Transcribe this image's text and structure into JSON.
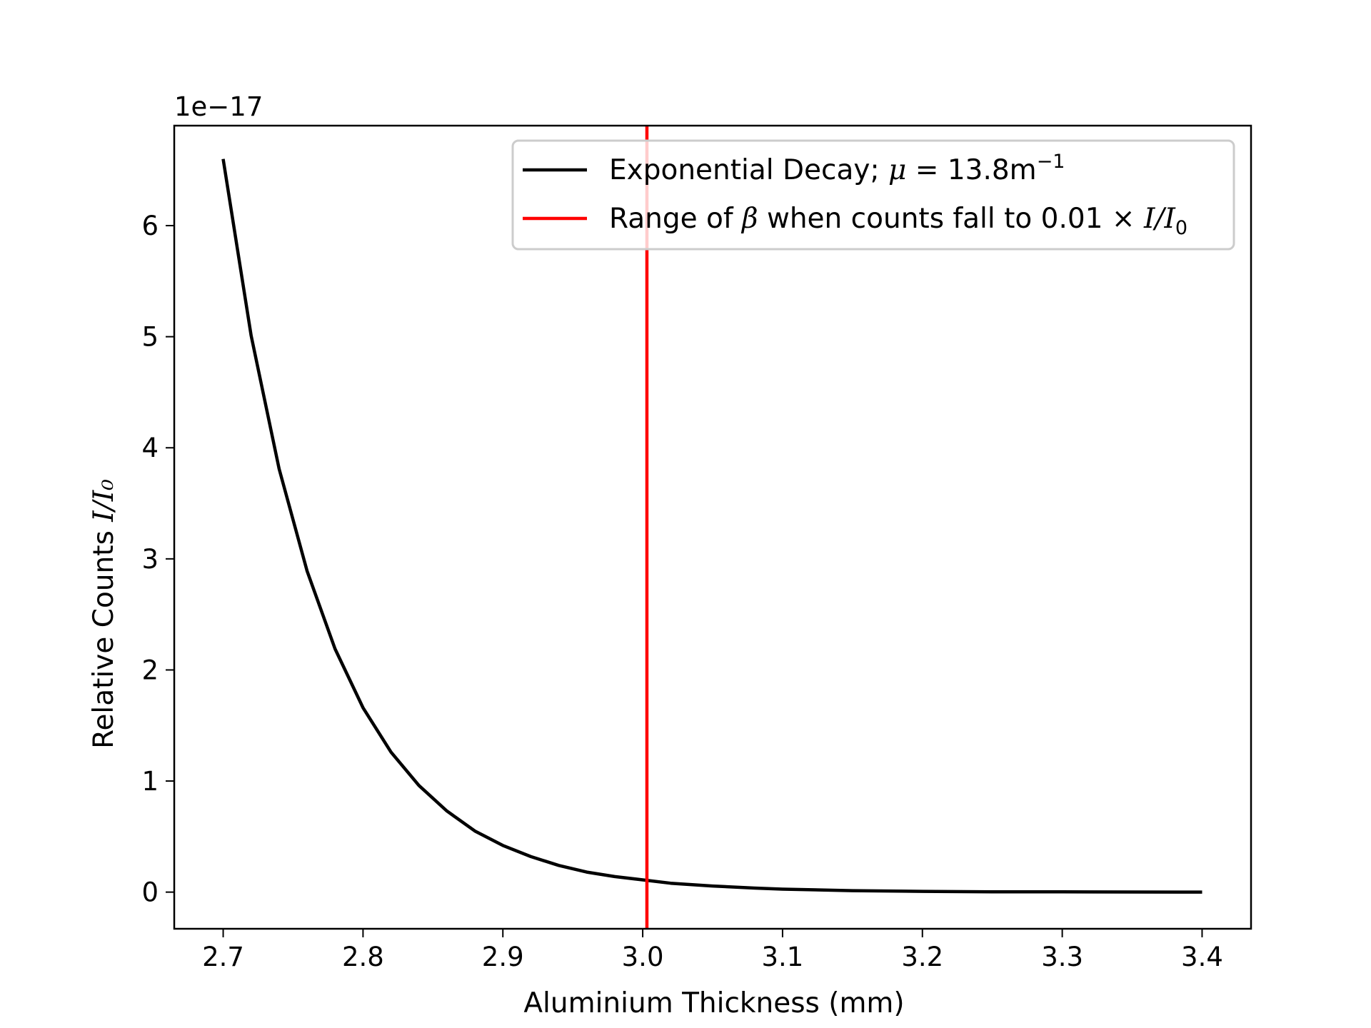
{
  "chart_data": {
    "type": "line",
    "xlabel": "Aluminium Thickness (mm)",
    "ylabel_prefix": "Relative Counts ",
    "ylabel_math": "I/I₀",
    "y_offset_text": "1e−17",
    "xlim": [
      2.665,
      3.435
    ],
    "ylim": [
      -0.33,
      6.9
    ],
    "xticks": [
      2.7,
      2.8,
      2.9,
      3.0,
      3.1,
      3.2,
      3.3,
      3.4
    ],
    "xtick_labels": [
      "2.7",
      "2.8",
      "2.9",
      "3.0",
      "3.1",
      "3.2",
      "3.3",
      "3.4"
    ],
    "yticks": [
      0,
      1,
      2,
      3,
      4,
      5,
      6
    ],
    "ytick_labels": [
      "0",
      "1",
      "2",
      "3",
      "4",
      "5",
      "6"
    ],
    "grid": false,
    "legend_placement": "upper right",
    "series": [
      {
        "name": "Exponential Decay; μ = 13.8m⁻¹",
        "kind": "line",
        "color": "#000000",
        "x": [
          2.7,
          2.72,
          2.74,
          2.76,
          2.78,
          2.8,
          2.82,
          2.84,
          2.86,
          2.88,
          2.9,
          2.92,
          2.94,
          2.96,
          2.98,
          3.0,
          3.02,
          3.05,
          3.08,
          3.1,
          3.15,
          3.2,
          3.25,
          3.3,
          3.35,
          3.4
        ],
        "y": [
          6.6,
          5.01,
          3.81,
          2.89,
          2.19,
          1.66,
          1.26,
          0.96,
          0.73,
          0.55,
          0.42,
          0.32,
          0.24,
          0.18,
          0.14,
          0.11,
          0.08,
          0.055,
          0.036,
          0.027,
          0.013,
          0.007,
          0.003,
          0.002,
          0.001,
          0.0004
        ]
      },
      {
        "name": "Range of β when counts fall to 0.01 × I/I₀",
        "kind": "vline",
        "color": "#ff0000",
        "x": 3.003
      }
    ]
  },
  "legend": {
    "entries": [
      {
        "text": "Exponential Decay; ",
        "math_sym": "μ",
        "math_rest": " = 13.8m",
        "sup": "−1"
      },
      {
        "text": "Range of ",
        "math_sym": "β",
        "math_rest": " when counts fall to 0.01 × ",
        "math_frac": "I/I",
        "sub": "0"
      }
    ]
  }
}
